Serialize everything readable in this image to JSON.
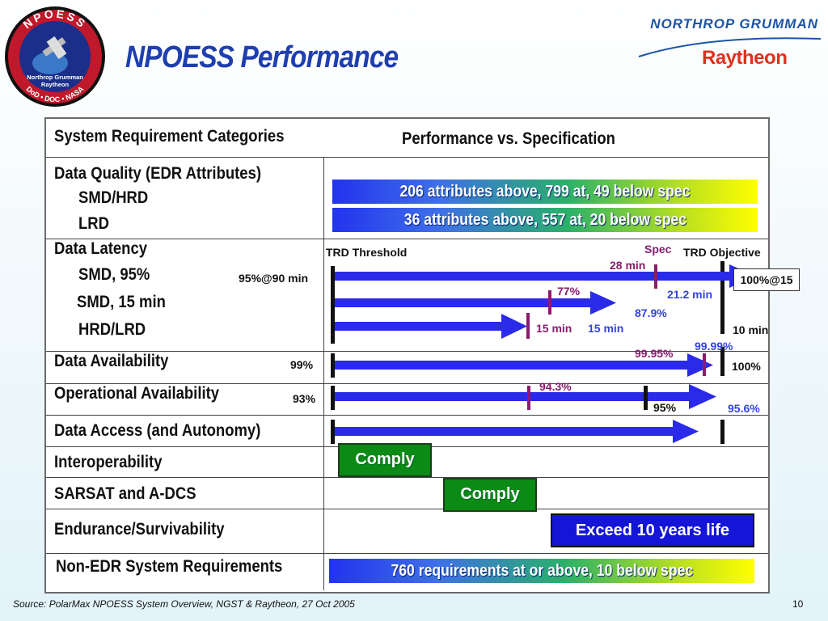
{
  "header": {
    "title": "NPOESS Performance",
    "company1": "NORTHROP GRUMMAN",
    "company2": "Raytheon",
    "seal": {
      "top": "NPOESS",
      "line1": "Northrop Grumman",
      "line2": "Raytheon",
      "bottom": "DoD • DOC • NASA"
    }
  },
  "table": {
    "col1_header": "System Requirement Categories",
    "col2_header": "Performance vs. Specification",
    "rows": {
      "data_quality": {
        "label": "Data Quality (EDR Attributes)",
        "sub1": "SMD/HRD",
        "sub2": "LRD",
        "bar1": "206 attributes above, 799 at, 49 below spec",
        "bar2": "36 attributes above, 557 at, 20 below spec"
      },
      "data_latency": {
        "label": "Data Latency",
        "sub1": "SMD, 95%",
        "sub2": "SMD, 15 min",
        "sub3": "HRD/LRD",
        "threshold_label": "TRD Threshold",
        "spec_label": "Spec",
        "objective_label": "TRD Objective",
        "smd95_threshold": "95%@90 min",
        "smd95_spec": "28 min",
        "smd95_value": "21.2 min",
        "smd95_objective": "100%@15",
        "smd15_spec": "77%",
        "smd15_value": "87.9%",
        "hrd_spec": "15 min",
        "hrd_value": "15 min",
        "hrd_objective": "10 min"
      },
      "data_availability": {
        "label": "Data Availability",
        "threshold": "99%",
        "spec": "99.95%",
        "value": "99.99%",
        "objective": "100%"
      },
      "operational_availability": {
        "label": "Operational Availability",
        "threshold": "93%",
        "spec": "94.3%",
        "objective": "95%",
        "value": "95.6%"
      },
      "data_access": {
        "label": "Data Access (and Autonomy)"
      },
      "interoperability": {
        "label": "Interoperability",
        "status": "Comply"
      },
      "sarsat": {
        "label": "SARSAT and A-DCS",
        "status": "Comply"
      },
      "endurance": {
        "label": "Endurance/Survivability",
        "status": "Exceed 10 years life"
      },
      "non_edr": {
        "label": "Non-EDR System Requirements",
        "bar": "760 requirements at or above, 10 below spec"
      }
    }
  },
  "footer": {
    "source": "Source:  PolarMax NPOESS System Overview, NGST & Raytheon, 27 Oct 2005",
    "page": "10"
  },
  "colors": {
    "arrow": "#2a2ae8",
    "spec_tick": "#8a1b6e",
    "value_text": "#3344dd",
    "title": "#1f3fb0"
  }
}
